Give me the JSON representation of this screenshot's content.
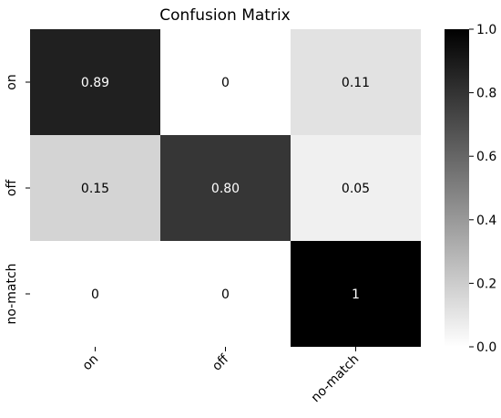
{
  "chart_data": {
    "type": "heatmap",
    "title": "Confusion Matrix",
    "x_categories": [
      "on",
      "off",
      "no-match"
    ],
    "y_categories": [
      "on",
      "off",
      "no-match"
    ],
    "values": [
      [
        0.89,
        0,
        0.11
      ],
      [
        0.15,
        0.8,
        0.05
      ],
      [
        0,
        0,
        1
      ]
    ],
    "cell_labels": [
      [
        "0.89",
        "0",
        "0.11"
      ],
      [
        "0.15",
        "0.80",
        "0.05"
      ],
      [
        "0",
        "0",
        "1"
      ]
    ],
    "colormap": "Greys",
    "colorbar": {
      "range": [
        0.0,
        1.0
      ],
      "ticks": [
        0.0,
        0.2,
        0.4,
        0.6,
        0.8,
        1.0
      ],
      "tick_labels": [
        "0.0",
        "0.2",
        "0.4",
        "0.6",
        "0.8",
        "1.0"
      ]
    }
  }
}
